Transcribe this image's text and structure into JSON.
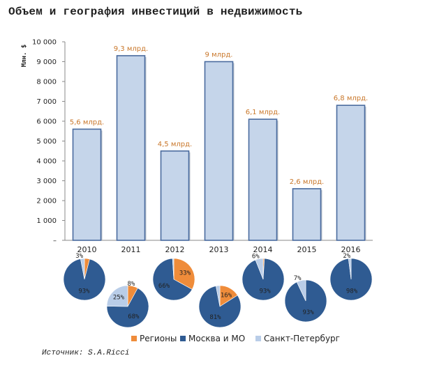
{
  "title": "Объем и география инвестиций в недвижимость",
  "source": "Источник: S.A.Ricci",
  "colors": {
    "bar_fill": "#c5d5ea",
    "bar_stroke": "#4a6b9e",
    "label": "#c9772a",
    "regions": "#ef8c3a",
    "moscow": "#2f5b92",
    "spb": "#b9cde8"
  },
  "chart_data": [
    {
      "type": "bar",
      "title": "Объем и география инвестиций в недвижимость",
      "ylabel": "Млн. $",
      "ylim": [
        0,
        10000
      ],
      "yticks": [
        "–",
        "1 000",
        "2 000",
        "3 000",
        "4 000",
        "5 000",
        "6 000",
        "7 000",
        "8 000",
        "9 000",
        "10 000"
      ],
      "categories": [
        "2010",
        "2011",
        "2012",
        "2013",
        "2014",
        "2015",
        "2016"
      ],
      "values": [
        5600,
        9300,
        4500,
        9000,
        6100,
        2600,
        6800
      ],
      "data_labels": [
        "5,6 млрд.",
        "9,3 млрд.",
        "4,5 млрд.",
        "9 млрд.",
        "6,1 млрд.",
        "2,6 млрд.",
        "6,8 млрд."
      ],
      "grid": false
    },
    {
      "type": "pie",
      "legend": [
        "Регионы",
        "Москва и МО",
        "Санкт-Петербург"
      ],
      "legend_position": "bottom",
      "pies": [
        {
          "year": "2010",
          "regions": 4,
          "moscow": 93,
          "spb": 3
        },
        {
          "year": "2011",
          "regions": 8,
          "moscow": 68,
          "spb": 25
        },
        {
          "year": "2012",
          "regions": 33,
          "moscow": 66,
          "spb": 1
        },
        {
          "year": "2013",
          "regions": 16,
          "moscow": 81,
          "spb": 3
        },
        {
          "year": "2014",
          "regions": 1,
          "moscow": 93,
          "spb": 6
        },
        {
          "year": "2015",
          "regions": 0,
          "moscow": 93,
          "spb": 7
        },
        {
          "year": "2016",
          "regions": 0,
          "moscow": 98,
          "spb": 2
        }
      ],
      "slice_labels": [
        {
          "regions": "",
          "moscow": "93%",
          "spb": "3%"
        },
        {
          "regions": "8%",
          "moscow": "68%",
          "spb": "25%"
        },
        {
          "regions": "33%",
          "moscow": "66%",
          "spb": ""
        },
        {
          "regions": "16%",
          "moscow": "81%",
          "spb": ""
        },
        {
          "regions": "",
          "moscow": "93%",
          "spb": "6%"
        },
        {
          "regions": "",
          "moscow": "93%",
          "spb": "7%"
        },
        {
          "regions": "",
          "moscow": "98%",
          "spb": "2%"
        }
      ]
    }
  ]
}
